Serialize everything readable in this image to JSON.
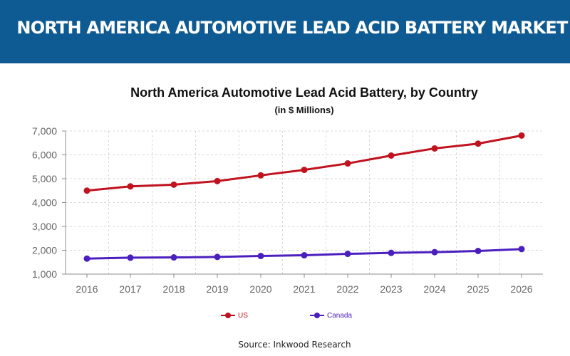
{
  "header": {
    "title": "NORTH AMERICA AUTOMOTIVE LEAD ACID BATTERY MARKET"
  },
  "source": "Source: Inkwood Research",
  "colors": {
    "banner": "#0e5a93",
    "us": "#c0121f",
    "canada": "#4b1fbf",
    "grid": "#d9d9d9",
    "axis": "#8c8c8c",
    "tick_text": "#666666"
  },
  "chart_data": {
    "type": "line",
    "title": "North America Automotive Lead Acid Battery, by Country",
    "subtitle": "(in $ Millions)",
    "xlabel": "",
    "ylabel": "",
    "categories": [
      "2016",
      "2017",
      "2018",
      "2019",
      "2020",
      "2021",
      "2022",
      "2023",
      "2024",
      "2025",
      "2026"
    ],
    "ylim": [
      1000,
      7000
    ],
    "yticks": [
      1000,
      2000,
      3000,
      4000,
      5000,
      6000,
      7000
    ],
    "ytick_labels": [
      "1,000",
      "2,000",
      "3,000",
      "4,000",
      "5,000",
      "6,000",
      "7,000"
    ],
    "grid": true,
    "legend_position": "bottom",
    "series": [
      {
        "name": "US",
        "color": "#c0121f",
        "values": [
          4500,
          4680,
          4750,
          4900,
          5140,
          5370,
          5640,
          5970,
          6270,
          6470,
          6810
        ]
      },
      {
        "name": "Canada",
        "color": "#4b1fbf",
        "values": [
          1650,
          1690,
          1700,
          1720,
          1760,
          1790,
          1850,
          1890,
          1920,
          1970,
          2050
        ]
      }
    ]
  }
}
